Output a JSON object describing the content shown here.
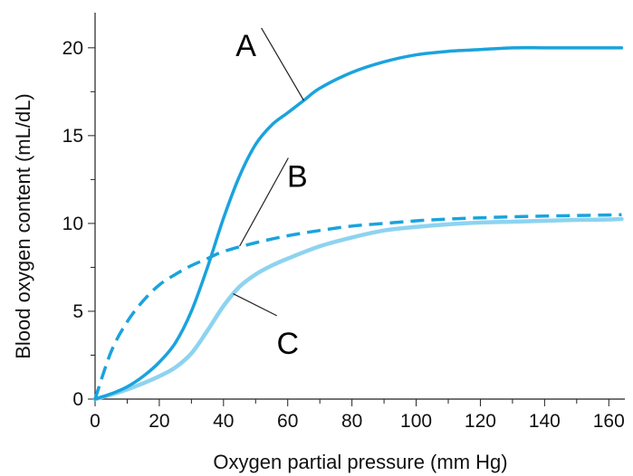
{
  "chart_data": {
    "type": "line",
    "title": "",
    "xlabel": "Oxygen partial pressure (mm Hg)",
    "ylabel": "Blood oxygen content (mL/dL)",
    "xlim": [
      0,
      165
    ],
    "ylim": [
      0,
      22
    ],
    "x_ticks": [
      0,
      20,
      40,
      60,
      80,
      100,
      120,
      140,
      160
    ],
    "y_ticks": [
      0,
      5,
      10,
      15,
      20
    ],
    "grid": false,
    "legend": "none",
    "series": [
      {
        "name": "A",
        "color": "#1aa3dd",
        "style": "solid",
        "x": [
          0,
          5,
          10,
          15,
          20,
          25,
          30,
          35,
          40,
          45,
          50,
          55,
          60,
          65,
          70,
          80,
          90,
          100,
          110,
          120,
          130,
          140,
          150,
          160,
          164
        ],
        "y": [
          0,
          0.3,
          0.7,
          1.3,
          2.1,
          3.2,
          5.0,
          7.5,
          10.3,
          12.7,
          14.5,
          15.6,
          16.3,
          17.0,
          17.7,
          18.6,
          19.2,
          19.6,
          19.8,
          19.9,
          20.0,
          20.0,
          20.0,
          20.0,
          20.0
        ]
      },
      {
        "name": "B",
        "color": "#1aa3dd",
        "style": "dashed",
        "x": [
          0,
          5,
          10,
          15,
          20,
          25,
          30,
          35,
          40,
          50,
          60,
          70,
          80,
          90,
          100,
          110,
          120,
          130,
          140,
          150,
          160,
          164
        ],
        "y": [
          0,
          2.7,
          4.4,
          5.6,
          6.5,
          7.1,
          7.6,
          8.0,
          8.4,
          8.9,
          9.3,
          9.6,
          9.85,
          10.0,
          10.15,
          10.25,
          10.32,
          10.38,
          10.42,
          10.45,
          10.48,
          10.5
        ]
      },
      {
        "name": "C",
        "color": "#8dd3f0",
        "style": "solid",
        "x": [
          0,
          5,
          10,
          15,
          20,
          25,
          30,
          35,
          40,
          45,
          50,
          55,
          60,
          70,
          80,
          90,
          100,
          110,
          120,
          130,
          140,
          150,
          160,
          164
        ],
        "y": [
          0,
          0.25,
          0.55,
          0.9,
          1.3,
          1.8,
          2.6,
          3.9,
          5.3,
          6.4,
          7.1,
          7.6,
          8.0,
          8.7,
          9.2,
          9.6,
          9.8,
          9.95,
          10.05,
          10.1,
          10.15,
          10.2,
          10.22,
          10.25
        ]
      }
    ],
    "annotations": [
      {
        "text": "A",
        "label_x": 47,
        "label_y": 20.2,
        "point_x": 65,
        "point_y": 17.0
      },
      {
        "text": "B",
        "label_x": 63,
        "label_y": 12.7,
        "point_x": 45,
        "point_y": 8.7
      },
      {
        "text": "C",
        "label_x": 60,
        "label_y": 3.2,
        "point_x": 43,
        "point_y": 6.0
      }
    ]
  }
}
